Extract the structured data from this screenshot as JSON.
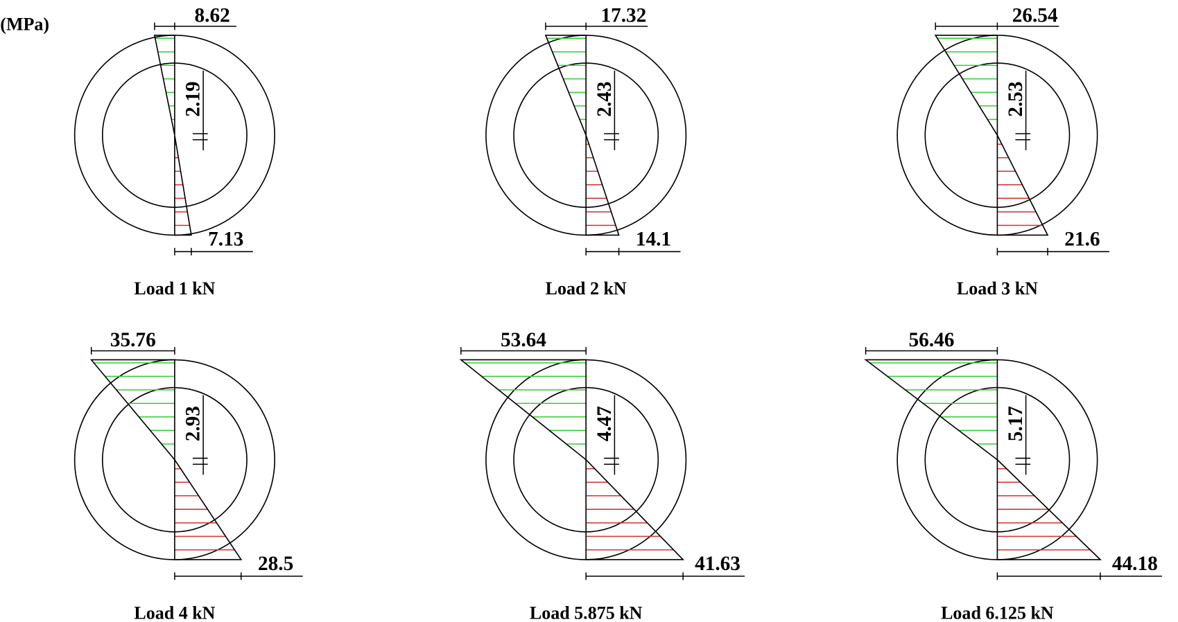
{
  "unit": "(MPa)",
  "panels": [
    {
      "label": "Load 1 kN",
      "top": 8.62,
      "bottom": 7.13,
      "neutral": 2.19
    },
    {
      "label": "Load 2 kN",
      "top": 17.32,
      "bottom": 14.1,
      "neutral": 2.43
    },
    {
      "label": "Load 3 kN",
      "top": 26.54,
      "bottom": 21.6,
      "neutral": 2.53
    },
    {
      "label": "Load 4 kN",
      "top": 35.76,
      "bottom": 28.5,
      "neutral": 2.93
    },
    {
      "label": "Load 5.875 kN",
      "top": 53.64,
      "bottom": 41.63,
      "neutral": 4.47
    },
    {
      "label": "Load 6.125 kN",
      "top": 56.46,
      "bottom": 44.18,
      "neutral": 5.17
    }
  ]
}
